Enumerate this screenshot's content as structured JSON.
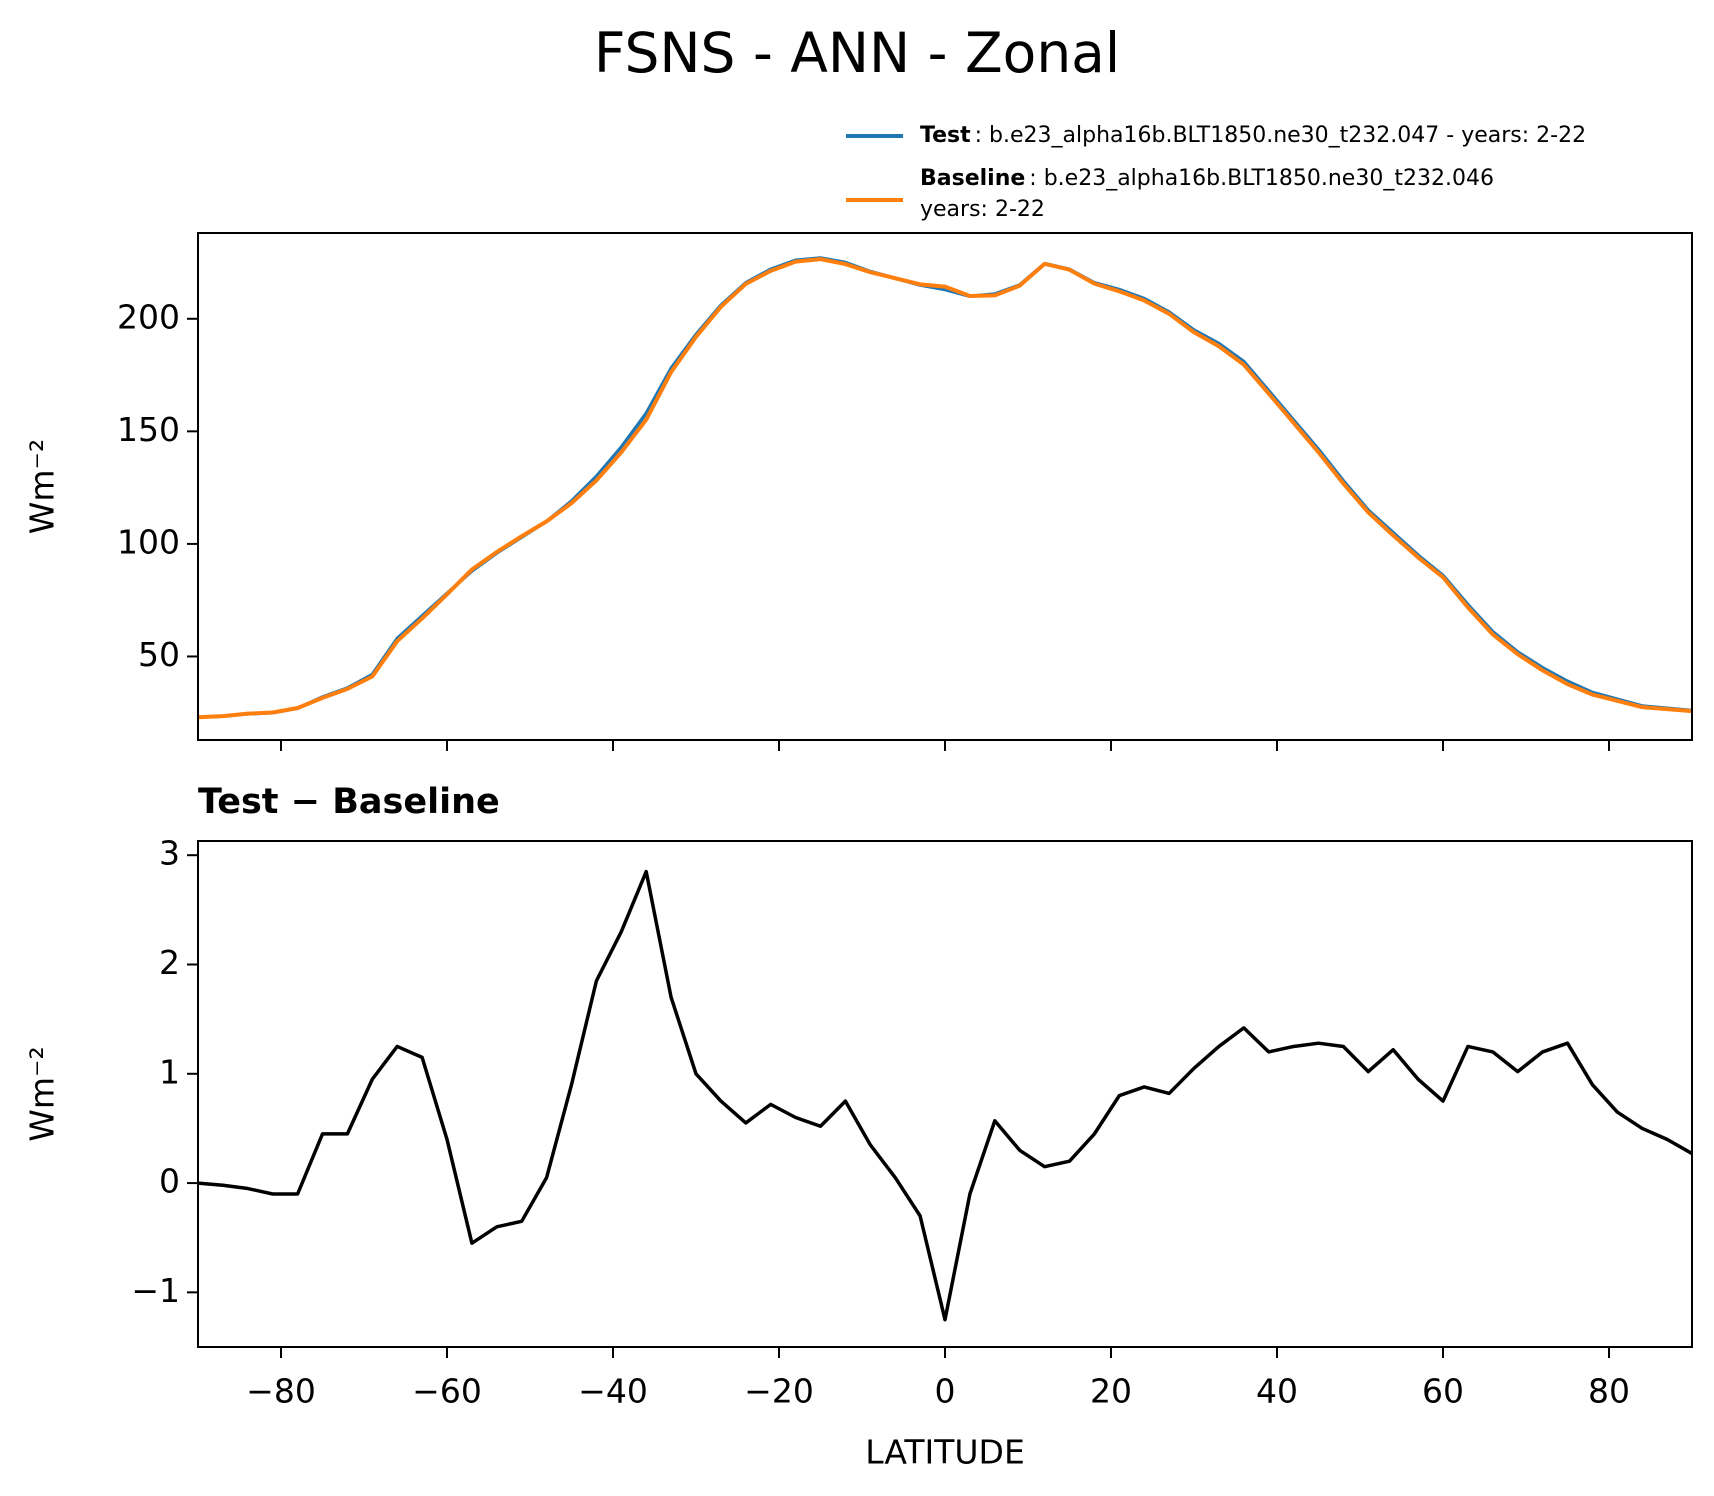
{
  "chart_data": [
    {
      "type": "line",
      "title": "FSNS - ANN - Zonal",
      "x": [
        -90,
        -87,
        -84,
        -81,
        -78,
        -75,
        -72,
        -69,
        -66,
        -63,
        -60,
        -57,
        -54,
        -51,
        -48,
        -45,
        -42,
        -39,
        -36,
        -33,
        -30,
        -27,
        -24,
        -21,
        -18,
        -15,
        -12,
        -9,
        -6,
        -3,
        0,
        3,
        6,
        9,
        12,
        15,
        18,
        21,
        24,
        27,
        30,
        33,
        36,
        39,
        42,
        45,
        48,
        51,
        54,
        57,
        60,
        63,
        66,
        69,
        72,
        75,
        78,
        81,
        84,
        87,
        90
      ],
      "series": [
        {
          "name": "Test",
          "description": [
            ": b.e23_alpha16b.BLT1850.ne30_t232.047 - years: 2-22"
          ],
          "color": "#1f77b4",
          "values": [
            23,
            23.5,
            24.5,
            25,
            27,
            32,
            36,
            42,
            58,
            68,
            78,
            88,
            96,
            103,
            110,
            119,
            130,
            143,
            158,
            178,
            193,
            206,
            216,
            222,
            226,
            227,
            225,
            221,
            218,
            215,
            213,
            210,
            211,
            215,
            224.5,
            222,
            216,
            213,
            209,
            203,
            195,
            189,
            181,
            168,
            155,
            142,
            128,
            115,
            105,
            95,
            86,
            73,
            61,
            52,
            45,
            39,
            34,
            31,
            28,
            27,
            26
          ]
        },
        {
          "name": "Baseline",
          "description": [
            ": b.e23_alpha16b.BLT1850.ne30_t232.046",
            "years: 2-22"
          ],
          "color": "#ff7f0e",
          "values": [
            23,
            23.5,
            24.6,
            25.1,
            27.1,
            31.6,
            35.6,
            41.1,
            56.8,
            66.9,
            77.6,
            88.6,
            96.4,
            103.4,
            110,
            118.1,
            128.2,
            140.7,
            155.2,
            176.3,
            192,
            205.3,
            215.5,
            221.3,
            225.4,
            226.5,
            224.3,
            220.7,
            218,
            215.3,
            214.3,
            210.1,
            210.4,
            214.7,
            224.4,
            221.8,
            215.6,
            212.2,
            208.1,
            202.2,
            194,
            187.8,
            179.6,
            166.8,
            153.8,
            140.7,
            126.8,
            114,
            103.8,
            94,
            85.2,
            71.8,
            59.8,
            51,
            43.8,
            37.7,
            33.1,
            30.3,
            27.5,
            26.6,
            25.7
          ]
        }
      ],
      "ylabel": "Wm⁻²",
      "xlim": [
        -90,
        90
      ],
      "ylim": [
        12.9,
        238.1
      ],
      "xticks": [
        -80,
        -60,
        -40,
        -20,
        0,
        20,
        40,
        60,
        80
      ],
      "yticks": [
        50,
        100,
        150,
        200
      ]
    },
    {
      "type": "line",
      "title": "Test − Baseline",
      "x": [
        -90,
        -87,
        -84,
        -81,
        -78,
        -75,
        -72,
        -69,
        -66,
        -63,
        -60,
        -57,
        -54,
        -51,
        -48,
        -45,
        -42,
        -39,
        -36,
        -33,
        -30,
        -27,
        -24,
        -21,
        -18,
        -15,
        -12,
        -9,
        -6,
        -3,
        0,
        3,
        6,
        9,
        12,
        15,
        18,
        21,
        24,
        27,
        30,
        33,
        36,
        39,
        42,
        45,
        48,
        51,
        54,
        57,
        60,
        63,
        66,
        69,
        72,
        75,
        78,
        81,
        84,
        87,
        90
      ],
      "series": [
        {
          "color": "#000000",
          "values": [
            0,
            -0.02,
            -0.05,
            -0.1,
            -0.1,
            0.45,
            0.45,
            0.95,
            1.25,
            1.15,
            0.4,
            -0.55,
            -0.4,
            -0.35,
            0.05,
            0.9,
            1.85,
            2.3,
            2.85,
            1.7,
            1.0,
            0.75,
            0.55,
            0.72,
            0.6,
            0.52,
            0.75,
            0.35,
            0.05,
            -0.3,
            -1.25,
            -0.1,
            0.57,
            0.3,
            0.15,
            0.2,
            0.45,
            0.8,
            0.88,
            0.82,
            1.05,
            1.25,
            1.42,
            1.2,
            1.25,
            1.28,
            1.25,
            1.02,
            1.22,
            0.95,
            0.75,
            1.25,
            1.2,
            1.02,
            1.2,
            1.28,
            0.9,
            0.65,
            0.5,
            0.4,
            0.27
          ]
        }
      ],
      "ylabel": "Wm⁻²",
      "xlabel": "LATITUDE",
      "xlim": [
        -90,
        90
      ],
      "ylim": [
        -1.5,
        3.13
      ],
      "xticks": [
        {
          "value": -80,
          "label": "−80"
        },
        {
          "value": -60,
          "label": "−60"
        },
        {
          "value": -40,
          "label": "−40"
        },
        {
          "value": -20,
          "label": "−20"
        },
        0,
        20,
        40,
        60,
        80
      ],
      "yticks": [
        {
          "value": -1,
          "label": "−1"
        },
        0,
        1,
        2,
        3
      ]
    }
  ]
}
